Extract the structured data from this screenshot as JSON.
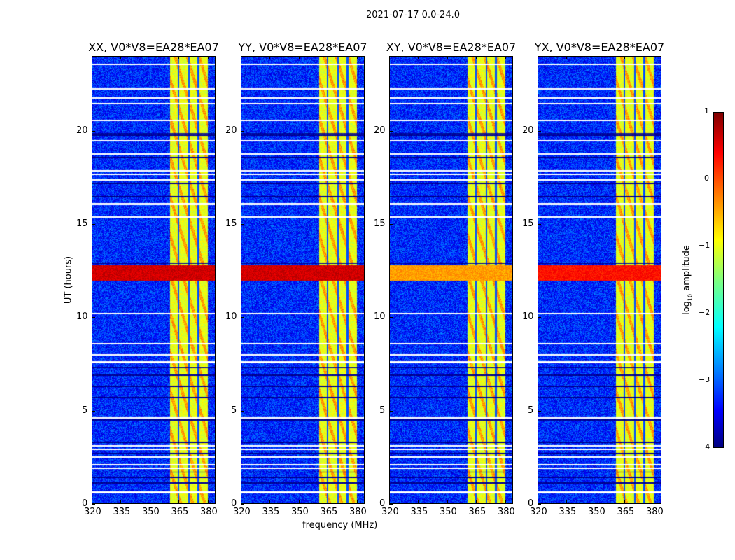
{
  "chart_data": {
    "type": "heatmap",
    "suptitle": "2021-07-17 0.0-24.0",
    "xlabel": "frequency (MHz)",
    "ylabel": "UT (hours)",
    "xlim": [
      320,
      384
    ],
    "ylim": [
      0,
      24
    ],
    "xticks": [
      "320",
      "335",
      "350",
      "365",
      "380"
    ],
    "xtick_values": [
      320,
      335,
      350,
      365,
      380
    ],
    "yticks": [
      "0",
      "5",
      "10",
      "15",
      "20"
    ],
    "ytick_values": [
      0,
      5,
      10,
      15,
      20
    ],
    "panels": [
      {
        "title": "XX, V0*V8=EA28*EA07",
        "band_level": 0.6
      },
      {
        "title": "YY, V0*V8=EA28*EA07",
        "band_level": 0.6
      },
      {
        "title": "XY, V0*V8=EA28*EA07",
        "band_level": -0.4
      },
      {
        "title": "YX, V0*V8=EA28*EA07",
        "band_level": 0.3
      }
    ],
    "background_log_amplitude": -3.2,
    "rfi_band_mhz": [
      360.5,
      380
    ],
    "rfi_log_amplitude": -1,
    "strong_rfi_hours": [
      12.0,
      12.8
    ],
    "flagged_hours_white": [
      0.6,
      1.9,
      2.1,
      2.5,
      2.9,
      3.1,
      4.6,
      7.6,
      8.0,
      8.6,
      10.2,
      15.4,
      16.1,
      17.4,
      17.7,
      17.9,
      18.8,
      19.5,
      20.6,
      21.5,
      21.8,
      22.3,
      23.6
    ],
    "dark_hours": [
      1.1,
      1.4,
      1.7,
      2.7,
      3.3,
      4.5,
      5.7,
      6.3,
      6.9,
      7.3,
      12.9,
      16.5,
      17.2,
      18.6,
      19.8,
      19.9
    ],
    "colorbar": {
      "label_prefix": "log",
      "label_sub": "10",
      "label_suffix": " amplitude",
      "ticks": [
        "1",
        "0",
        "−1",
        "−2",
        "−3",
        "−4"
      ],
      "tick_values": [
        1,
        0,
        -1,
        -2,
        -3,
        -4
      ],
      "range": [
        -4,
        1
      ],
      "colormap": "jet"
    }
  }
}
